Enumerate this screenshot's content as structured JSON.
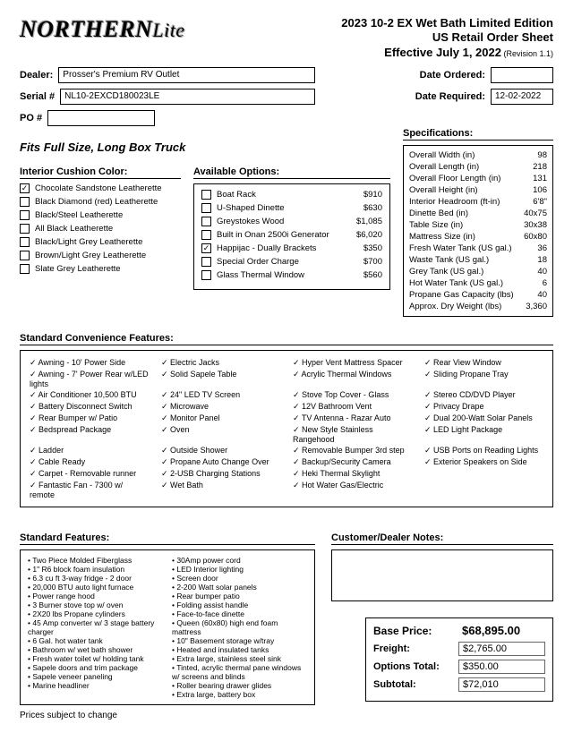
{
  "header": {
    "logo_main": "NORTHERN",
    "logo_sub": "Lite",
    "title_line1": "2023 10-2 EX Wet Bath Limited Edition",
    "title_line2": "US Retail Order Sheet",
    "title_line3": "Effective July 1, 2022",
    "revision": " (Revision 1.1)"
  },
  "fields": {
    "dealer_label": "Dealer:",
    "dealer_value": "Prosser's Premium RV Outlet",
    "serial_label": "Serial #",
    "serial_value": "NL10-2EXCD180023LE",
    "po_label": "PO #",
    "po_value": "",
    "date_ordered_label": "Date Ordered:",
    "date_ordered_value": "",
    "date_required_label": "Date Required:",
    "date_required_value": "12-02-2022"
  },
  "fits_line": "Fits Full Size, Long Box Truck",
  "cushion": {
    "heading": "Interior Cushion Color:",
    "items": [
      {
        "label": "Chocolate Sandstone Leatherette",
        "checked": "✓"
      },
      {
        "label": "Black Diamond (red) Leatherette",
        "checked": ""
      },
      {
        "label": "Black/Steel Leatherette",
        "checked": ""
      },
      {
        "label": "All Black Leatherette",
        "checked": ""
      },
      {
        "label": "Black/Light Grey Leatherette",
        "checked": ""
      },
      {
        "label": "Brown/Light Grey Leatherette",
        "checked": ""
      },
      {
        "label": "Slate Grey Leatherette",
        "checked": ""
      }
    ]
  },
  "options": {
    "heading": "Available Options:",
    "items": [
      {
        "label": "Boat Rack",
        "price": "$910",
        "checked": ""
      },
      {
        "label": "U-Shaped Dinette",
        "price": "$630",
        "checked": ""
      },
      {
        "label": "Greystokes Wood",
        "price": "$1,085",
        "checked": ""
      },
      {
        "label": "Built in Onan 2500i Generator",
        "price": "$6,020",
        "checked": ""
      },
      {
        "label": "Happijac - Dually Brackets",
        "price": "$350",
        "checked": "✓"
      },
      {
        "label": "Special Order Charge",
        "price": "$700",
        "checked": ""
      },
      {
        "label": "Glass Thermal Window",
        "price": "$560",
        "checked": ""
      }
    ]
  },
  "specs": {
    "heading": "Specifications:",
    "rows": [
      {
        "k": "Overall Width (in)",
        "v": "98"
      },
      {
        "k": "Overall Length (in)",
        "v": "218"
      },
      {
        "k": "Overall Floor Length (in)",
        "v": "131"
      },
      {
        "k": "Overall Height (in)",
        "v": "106"
      },
      {
        "k": "Interior Headroom (ft-in)",
        "v": "6'8\""
      },
      {
        "k": "Dinette Bed (in)",
        "v": "40x75"
      },
      {
        "k": "Table Size (in)",
        "v": "30x38"
      },
      {
        "k": "Mattress Size (in)",
        "v": "60x80"
      },
      {
        "k": "Fresh Water Tank (US gal.)",
        "v": "36"
      },
      {
        "k": "Waste Tank (US gal.)",
        "v": "18"
      },
      {
        "k": "Grey Tank (US gal.)",
        "v": "40"
      },
      {
        "k": "Hot Water Tank (US gal.)",
        "v": "6"
      },
      {
        "k": "Propane Gas Capacity (lbs)",
        "v": "40"
      },
      {
        "k": "Approx. Dry Weight (lbs)",
        "v": "3,360"
      }
    ]
  },
  "std_conv": {
    "heading": "Standard Convenience Features:",
    "items": [
      "Awning - 10' Power Side",
      "Electric Jacks",
      "Hyper Vent Mattress Spacer",
      "Rear View Window",
      "Awning - 7' Power Rear w/LED lights",
      "Solid Sapele Table",
      "Acrylic Thermal Windows",
      "Sliding Propane Tray",
      "Air Conditioner 10,500 BTU",
      "24\" LED TV Screen",
      "Stove Top Cover - Glass",
      "Stereo CD/DVD Player",
      "Battery Disconnect Switch",
      "Microwave",
      "12V Bathroom Vent",
      "Privacy Drape",
      "Rear Bumper w/ Patio",
      "Monitor Panel",
      "TV Antenna - Razar Auto",
      "Dual 200-Watt Solar Panels",
      "Bedspread Package",
      "Oven",
      "New Style Stainless Rangehood",
      "LED Light Package",
      "Ladder",
      "Outside Shower",
      "Removable Bumper 3rd step",
      "USB Ports on Reading Lights",
      "Cable Ready",
      "Propane Auto Change Over",
      "Backup/Security Camera",
      "Exterior Speakers on Side",
      "Carpet - Removable runner",
      "2-USB Charging Stations",
      "Heki Thermal Skylight",
      "",
      "Fantastic Fan - 7300 w/ remote",
      "Wet Bath",
      "Hot Water Gas/Electric",
      ""
    ]
  },
  "std_feat": {
    "heading": "Standard Features:",
    "col1": [
      "Two Piece Molded Fiberglass",
      "1\" R6 block foam insulation",
      "6.3 cu ft 3-way fridge - 2 door",
      "20,000 BTU auto light furnace",
      "Power range hood",
      "3 Burner stove top w/ oven",
      "2X20 lbs Propane cylinders",
      "45 Amp converter w/ 3 stage battery charger",
      "6 Gal. hot water tank",
      "Bathroom w/ wet bath shower",
      "Fresh water toilet w/ holding tank",
      "Sapele doors and trim package",
      "Sapele veneer paneling",
      "Marine headliner"
    ],
    "col2": [
      "30Amp power cord",
      "LED Interior lighting",
      "Screen door",
      "2-200 Watt solar panels",
      "Rear bumper patio",
      "Folding assist handle",
      "Face-to-face dinette",
      "Queen (60x80) high end foam mattress",
      "10\" Basement storage w/tray",
      "Heated and insulated tanks",
      "Extra large, stainless steel sink",
      "Tinted, acrylic thermal pane windows w/ screens and blinds",
      "Roller bearing drawer glides",
      "Extra large, battery box"
    ]
  },
  "notes": {
    "heading": "Customer/Dealer Notes:"
  },
  "pricing": {
    "base_label": "Base Price:",
    "base_value": "$68,895.00",
    "freight_label": "Freight:",
    "freight_value": "$2,765.00",
    "options_label": "Options Total:",
    "options_value": "$350.00",
    "subtotal_label": "Subtotal:",
    "subtotal_value": "$72,010"
  },
  "footer": "Prices subject to change"
}
